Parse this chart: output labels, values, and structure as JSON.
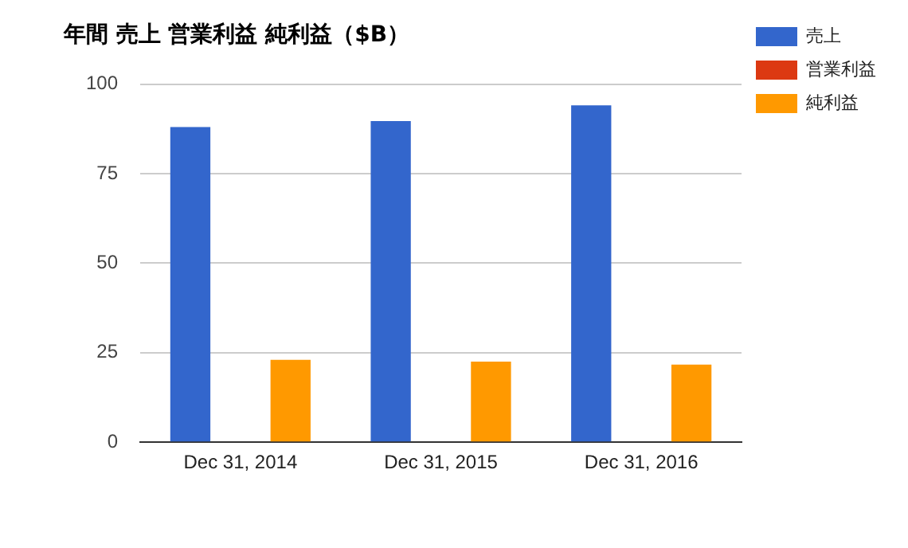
{
  "chart_data": {
    "type": "bar",
    "title": "年間 売上 営業利益 純利益（$B）",
    "categories": [
      "Dec 31, 2014",
      "Dec 31, 2015",
      "Dec 31, 2016"
    ],
    "series": [
      {
        "name": "売上",
        "color": "#3366cc",
        "values": [
          88.0,
          89.7,
          94.1
        ]
      },
      {
        "name": "営業利益",
        "color": "#dc3912",
        "values": [
          null,
          null,
          null
        ]
      },
      {
        "name": "純利益",
        "color": "#ff9900",
        "values": [
          23.0,
          22.5,
          21.7
        ]
      }
    ],
    "ylim": [
      0,
      100
    ],
    "yticks": [
      0,
      25,
      50,
      75,
      100
    ],
    "grid": "y",
    "legend": "top right"
  }
}
